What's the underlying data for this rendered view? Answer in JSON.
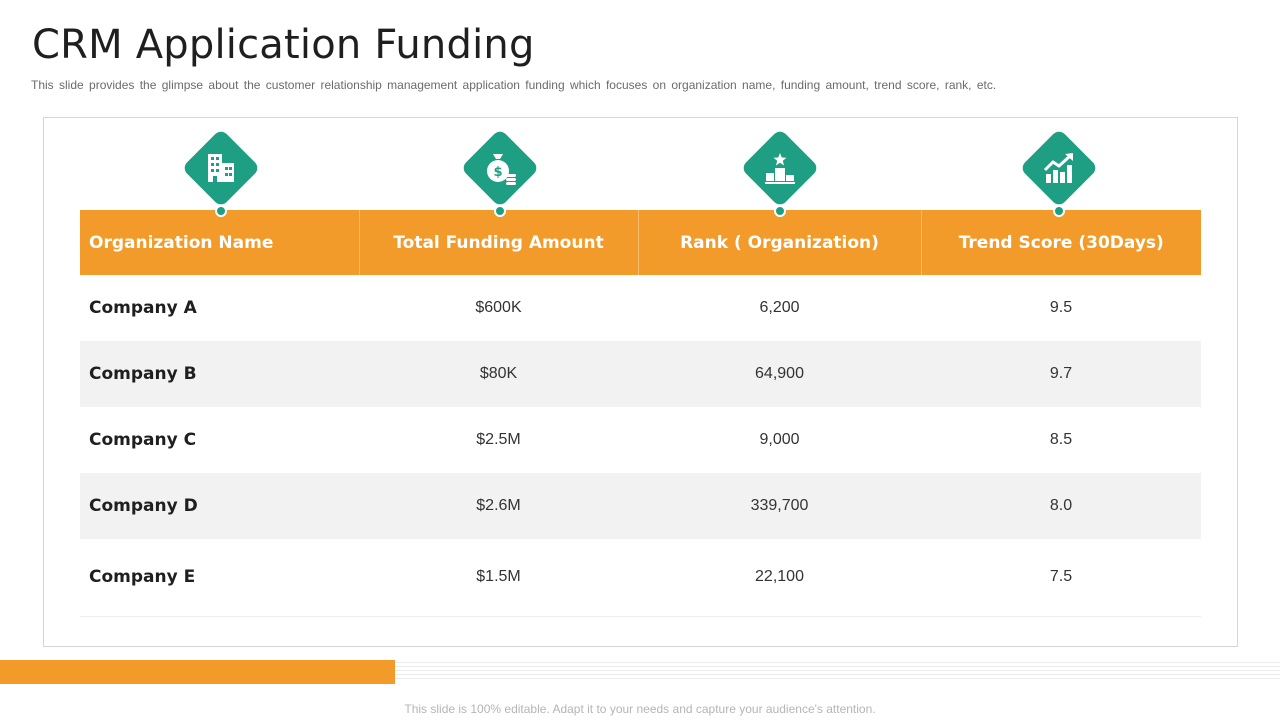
{
  "slide": {
    "title": "CRM Application Funding",
    "subtitle": "This slide provides the glimpse about the customer relationship management application funding which focuses on organization name, funding amount, trend score, rank, etc."
  },
  "icons": [
    {
      "name": "building-icon",
      "color": "#1e9e82"
    },
    {
      "name": "money-bag-icon",
      "color": "#1e9e82"
    },
    {
      "name": "podium-icon",
      "color": "#1e9e82"
    },
    {
      "name": "trend-chart-icon",
      "color": "#1e9e82"
    }
  ],
  "table": {
    "headers": [
      "Organization Name",
      "Total Funding Amount",
      "Rank ( Organization)",
      "Trend Score (30Days)"
    ],
    "rows": [
      [
        "Company A",
        "$600K",
        "6,200",
        "9.5"
      ],
      [
        "Company B",
        "$80K",
        "64,900",
        "9.7"
      ],
      [
        "Company C",
        "$2.5M",
        "9,000",
        "8.5"
      ],
      [
        "Company D",
        "$2.6M",
        "339,700",
        "8.0"
      ],
      [
        "Company E",
        "$1.5M",
        "22,100",
        "7.5"
      ]
    ],
    "header_color": "#f29b2a"
  },
  "footer": {
    "text": "This slide is 100% editable. Adapt it to your needs and capture your audience's attention."
  }
}
